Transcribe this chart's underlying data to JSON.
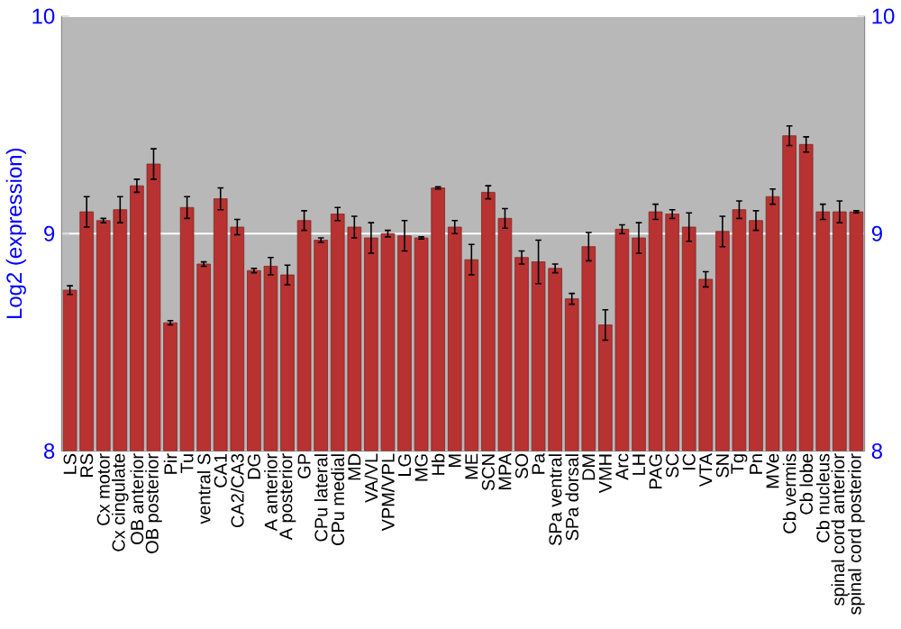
{
  "chart_data": {
    "type": "bar",
    "ylabel": "Log2 (expression)",
    "categories": [
      "LS",
      "RS",
      "Cx motor",
      "Cx cingulate",
      "OB anterior",
      "OB posterior",
      "Pir",
      "Tu",
      "ventral S",
      "CA1",
      "CA2/CA3",
      "DG",
      "A anterior",
      "A posterior",
      "GP",
      "CPu lateral",
      "CPu medial",
      "MD",
      "VA/VL",
      "VPM/VPL",
      "LG",
      "MG",
      "Hb",
      "M",
      "ME",
      "SCN",
      "MPA",
      "SO",
      "Pa",
      "SPa ventral",
      "SPa dorsal",
      "DM",
      "VMH",
      "Arc",
      "LH",
      "PAG",
      "SC",
      "IC",
      "VTA",
      "SN",
      "Tg",
      "Pn",
      "MVe",
      "Cb vermis",
      "Cb lobe",
      "Cb nucleus",
      "spinal cord anterior",
      "spinal cord posterior"
    ],
    "values": [
      8.74,
      9.1,
      9.06,
      9.11,
      9.22,
      9.32,
      8.59,
      9.12,
      8.86,
      9.16,
      9.03,
      8.83,
      8.85,
      8.81,
      9.06,
      8.97,
      9.09,
      9.03,
      8.98,
      9.0,
      8.99,
      8.98,
      9.21,
      9.03,
      8.88,
      9.19,
      9.07,
      8.89,
      8.87,
      8.84,
      8.7,
      8.94,
      8.58,
      9.02,
      8.98,
      9.1,
      9.09,
      9.03,
      8.79,
      9.01,
      9.11,
      9.06,
      9.17,
      9.45,
      9.41,
      9.1,
      9.1,
      9.1
    ],
    "errors": [
      0.02,
      0.07,
      0.01,
      0.06,
      0.03,
      0.07,
      0.01,
      0.05,
      0.01,
      0.05,
      0.035,
      0.01,
      0.04,
      0.045,
      0.045,
      0.01,
      0.03,
      0.05,
      0.07,
      0.015,
      0.07,
      0.005,
      0.005,
      0.03,
      0.07,
      0.03,
      0.045,
      0.03,
      0.1,
      0.02,
      0.025,
      0.065,
      0.07,
      0.02,
      0.07,
      0.035,
      0.02,
      0.065,
      0.035,
      0.07,
      0.04,
      0.045,
      0.035,
      0.045,
      0.035,
      0.035,
      0.05,
      0.005
    ],
    "color": "#b83232",
    "ylim": [
      8,
      10
    ],
    "yticks": [
      8,
      9,
      10
    ],
    "y2lim": [
      8,
      10
    ],
    "y2ticks": [
      8,
      9,
      10
    ],
    "grid": "y"
  }
}
